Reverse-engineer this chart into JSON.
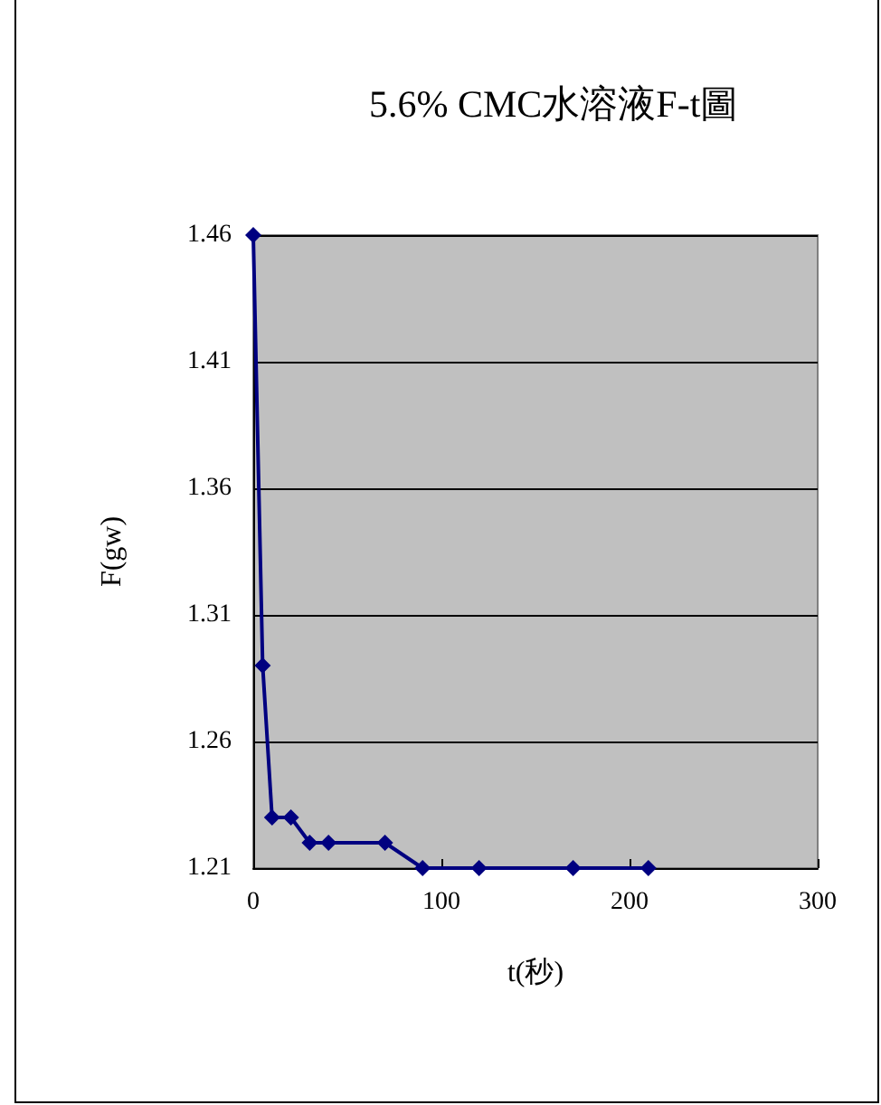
{
  "chart_data": {
    "type": "line",
    "title": "5.6% CMC水溶液F-t圖",
    "xlabel": "t(秒)",
    "ylabel": "F(gw)",
    "x": [
      0,
      5,
      10,
      20,
      30,
      40,
      70,
      90,
      120,
      170,
      210
    ],
    "series": [
      {
        "color": "#000080",
        "values": [
          1.46,
          1.29,
          1.23,
          1.23,
          1.22,
          1.22,
          1.22,
          1.21,
          1.21,
          1.21,
          1.21
        ]
      }
    ],
    "xlim": [
      0,
      300
    ],
    "xticks": [
      0,
      100,
      200,
      300
    ],
    "ylim": [
      1.21,
      1.46
    ],
    "yticks": [
      1.21,
      1.26,
      1.31,
      1.36,
      1.41,
      1.46
    ],
    "grid": "y",
    "marker": "diamond",
    "line_style": "solid"
  }
}
